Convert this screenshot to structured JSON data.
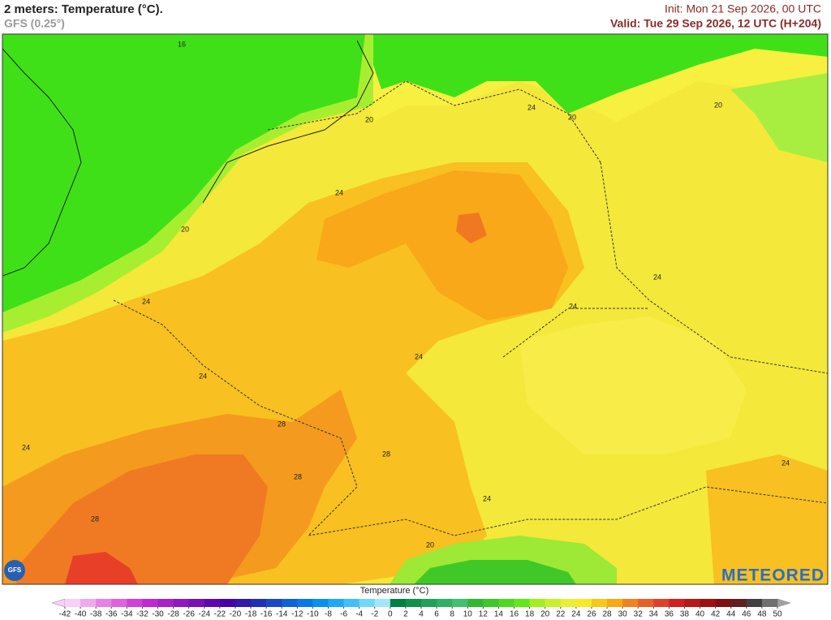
{
  "header": {
    "title": "2 meters: Temperature (°C).",
    "subtitle": "GFS (0.25°)",
    "init": "Init: Mon 21 Sep 2026, 00 UTC",
    "valid": "Valid: Tue 29 Sep 2026, 12 UTC (H+204)"
  },
  "map": {
    "contour_labels": [
      16,
      20,
      24,
      20,
      20,
      24,
      20,
      24,
      24,
      24,
      24,
      24,
      24,
      28,
      28,
      28,
      24,
      28,
      20,
      24
    ]
  },
  "legend": {
    "title": "Temperature (°C)",
    "ticks": [
      -42,
      -40,
      -38,
      -36,
      -34,
      -32,
      -30,
      -28,
      -26,
      -24,
      -22,
      -20,
      -18,
      -16,
      -14,
      -12,
      -10,
      -8,
      -6,
      -4,
      -2,
      0,
      2,
      4,
      6,
      8,
      10,
      12,
      14,
      16,
      18,
      20,
      22,
      24,
      26,
      28,
      30,
      32,
      34,
      36,
      38,
      40,
      42,
      44,
      46,
      48,
      50
    ],
    "colors": [
      "#f8d0f8",
      "#f0a8f0",
      "#e880e8",
      "#e060e0",
      "#d040d8",
      "#c028d0",
      "#a820c8",
      "#9018c0",
      "#7810b8",
      "#6008b0",
      "#4800a8",
      "#3018b0",
      "#2030b8",
      "#1848c8",
      "#1060d8",
      "#0878e8",
      "#0890f0",
      "#20a8f8",
      "#40c0f8",
      "#70d8f8",
      "#a0e8f8",
      "#008040",
      "#10904c",
      "#20a058",
      "#30b064",
      "#40c070",
      "#30b830",
      "#40c828",
      "#50d820",
      "#60e818",
      "#a0f020",
      "#c8f028",
      "#e8f030",
      "#f8e828",
      "#f8c818",
      "#f8a810",
      "#f08020",
      "#e86028",
      "#e04028",
      "#d02020",
      "#b81818",
      "#a01010",
      "#801010",
      "#602020",
      "#404040",
      "#707070"
    ]
  },
  "branding": {
    "logo": "METEORED",
    "model_badge": "GFS"
  }
}
